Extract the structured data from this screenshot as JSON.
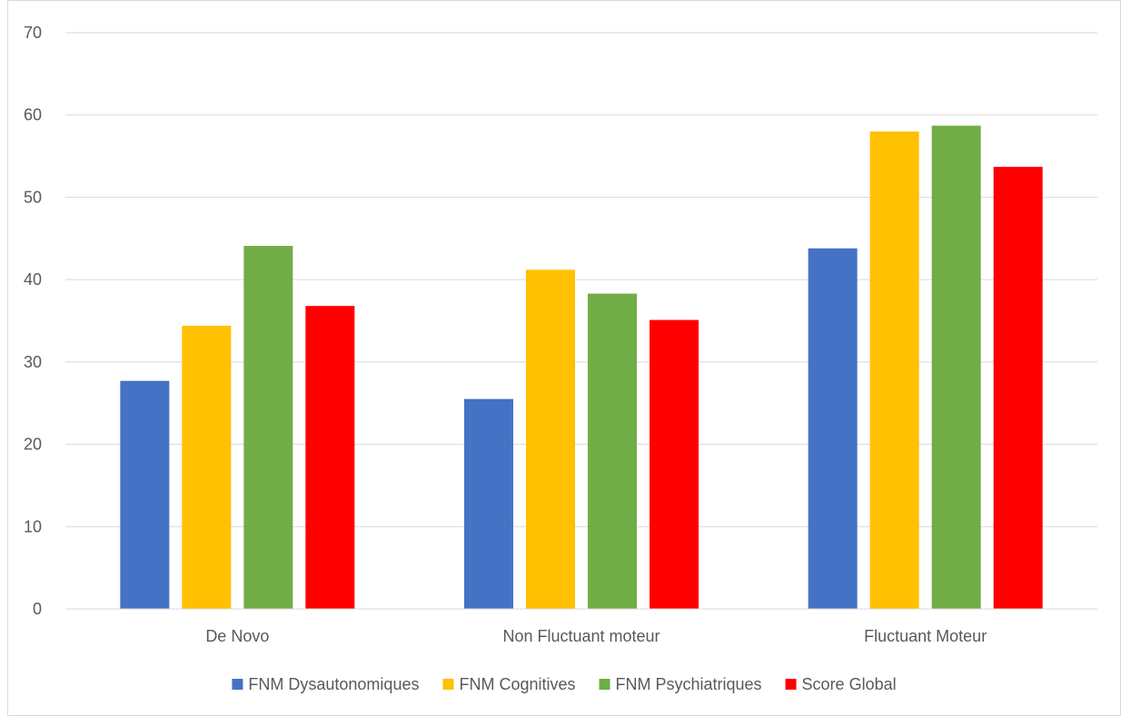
{
  "chart_data": {
    "type": "bar",
    "title": "",
    "xlabel": "",
    "ylabel": "",
    "categories": [
      "De Novo",
      "Non Fluctuant moteur",
      "Fluctuant Moteur"
    ],
    "series": [
      {
        "name": "FNM Dysautonomiques",
        "color": "#4472c4",
        "values": [
          27.7,
          25.5,
          43.8
        ]
      },
      {
        "name": "FNM Cognitives",
        "color": "#ffc000",
        "values": [
          34.4,
          41.2,
          58.0
        ]
      },
      {
        "name": "FNM Psychiatriques",
        "color": "#70ad47",
        "values": [
          44.1,
          38.3,
          58.7
        ]
      },
      {
        "name": "Score Global",
        "color": "#ff0000",
        "values": [
          36.8,
          35.1,
          53.7
        ]
      }
    ],
    "ylim": [
      0,
      70
    ],
    "yticks": [
      0,
      10,
      20,
      30,
      40,
      50,
      60,
      70
    ],
    "grid": true,
    "legend": "bottom"
  }
}
